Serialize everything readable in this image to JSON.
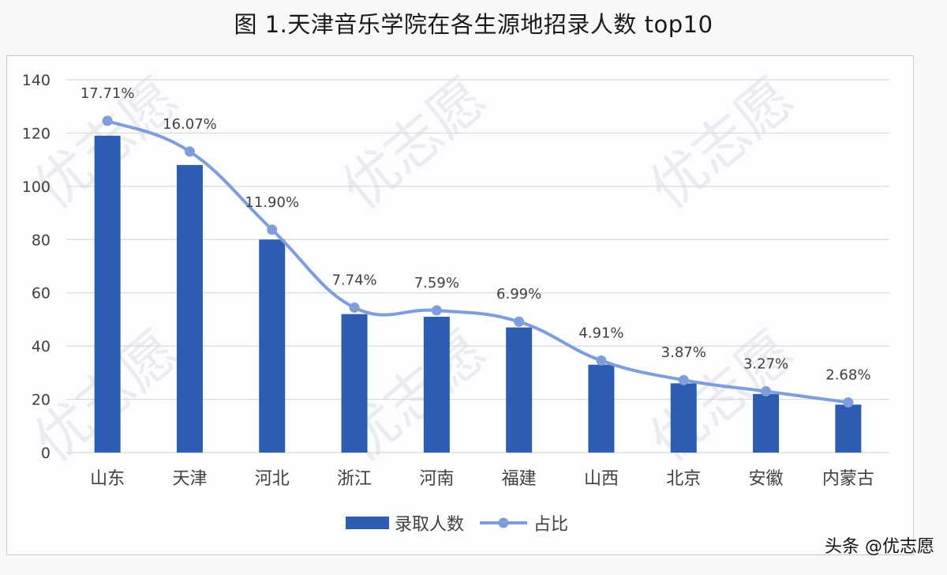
{
  "title": "图 1.天津音乐学院在各生源地招录人数 top10",
  "credit": "头条 @优志愿",
  "watermark": "优志愿",
  "colors": {
    "bar": "#2e5cb0",
    "line": "#7f9ddb",
    "grid": "#d9d9d9",
    "text": "#404040"
  },
  "legend": [
    {
      "label": "录取人数",
      "type": "bar"
    },
    {
      "label": "占比",
      "type": "line"
    }
  ],
  "chart_data": {
    "type": "bar",
    "title": "图 1.天津音乐学院在各生源地招录人数 top10",
    "xlabel": "",
    "ylabel": "",
    "ylim": [
      0,
      140
    ],
    "yticks": [
      0,
      20,
      40,
      60,
      80,
      100,
      120,
      140
    ],
    "grid": true,
    "legend_position": "bottom",
    "categories": [
      "山东",
      "天津",
      "河北",
      "浙江",
      "河南",
      "福建",
      "山西",
      "北京",
      "安徽",
      "内蒙古"
    ],
    "series": [
      {
        "name": "录取人数",
        "type": "bar",
        "values": [
          119,
          108,
          80,
          52,
          51,
          47,
          33,
          26,
          22,
          18
        ]
      },
      {
        "name": "占比",
        "type": "line",
        "values": [
          17.71,
          16.07,
          11.9,
          7.74,
          7.59,
          6.99,
          4.91,
          3.87,
          3.27,
          2.68
        ],
        "labels": [
          "17.71%",
          "16.07%",
          "11.90%",
          "7.74%",
          "7.59%",
          "6.99%",
          "4.91%",
          "3.87%",
          "3.27%",
          "2.68%"
        ]
      }
    ]
  }
}
